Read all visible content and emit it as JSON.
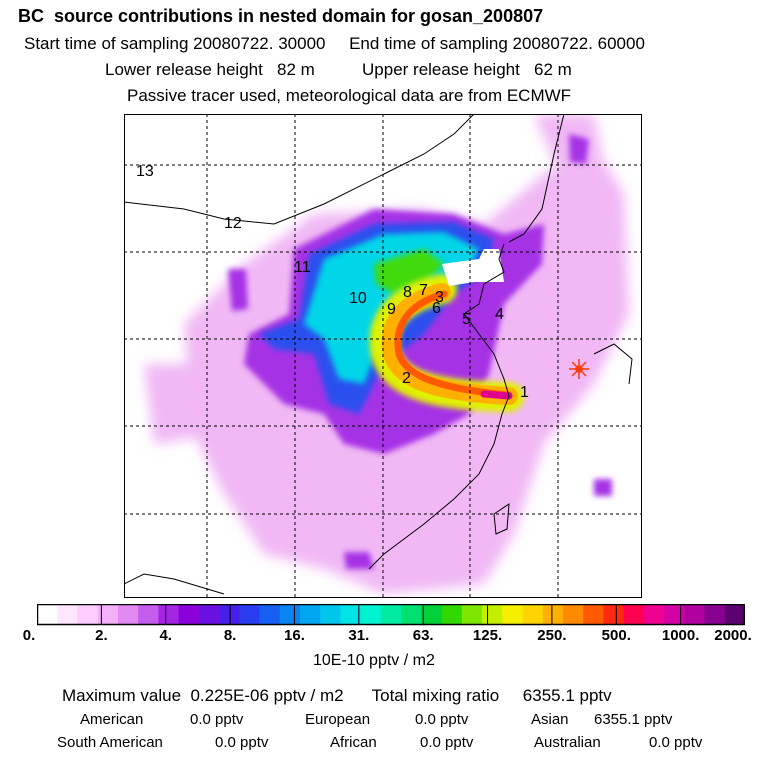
{
  "header": {
    "title": "BC  source contributions in nested domain for gosan_200807",
    "line1": "Start time of sampling 20080722. 30000     End time of sampling 20080722. 60000",
    "line2": "Lower release height   82 m          Upper release height   62 m",
    "line3": "Passive tracer used, meteorological data are from ECMWF"
  },
  "map": {
    "region_labels": [
      "13",
      "12",
      "11",
      "10",
      "9",
      "8",
      "7",
      "3",
      "6",
      "5",
      "4",
      "2",
      "1"
    ],
    "receptor_color": "#ff3b00"
  },
  "colorbar": {
    "ticks": [
      "0.",
      "2.",
      "4.",
      "8.",
      "16.",
      "31.",
      "63.",
      "125.",
      "250.",
      "500.",
      "1000.",
      "2000."
    ],
    "colors": [
      "#ffffff",
      "#ffe6ff",
      "#ffccff",
      "#f5b0fa",
      "#e08af2",
      "#c45cec",
      "#a426e4",
      "#8c00dc",
      "#6a10e0",
      "#4620e8",
      "#2a3cf0",
      "#1560f2",
      "#0a84f2",
      "#00a6f0",
      "#00c6ee",
      "#00e4e8",
      "#00f2d0",
      "#00eca4",
      "#00e070",
      "#00d03a",
      "#30d800",
      "#7ee600",
      "#c4f000",
      "#f4f000",
      "#ffd400",
      "#ffb000",
      "#ff8a00",
      "#ff5a00",
      "#ff2a10",
      "#ff0050",
      "#f00090",
      "#d400a8",
      "#b000a0",
      "#880090",
      "#5c0070"
    ],
    "units": "10E-10 pptv / m2"
  },
  "summary": {
    "maximum": "Maximum value  0.225E-06 pptv / m2",
    "total": "Total mixing ratio     6355.1 pptv",
    "stats": [
      {
        "name": "American",
        "value": "0.0 pptv"
      },
      {
        "name": "European",
        "value": "0.0 pptv"
      },
      {
        "name": "Asian",
        "value": "6355.1 pptv"
      },
      {
        "name": "South American",
        "value": "0.0 pptv"
      },
      {
        "name": "African",
        "value": "0.0 pptv"
      },
      {
        "name": "Australian",
        "value": "0.0 pptv"
      }
    ]
  }
}
